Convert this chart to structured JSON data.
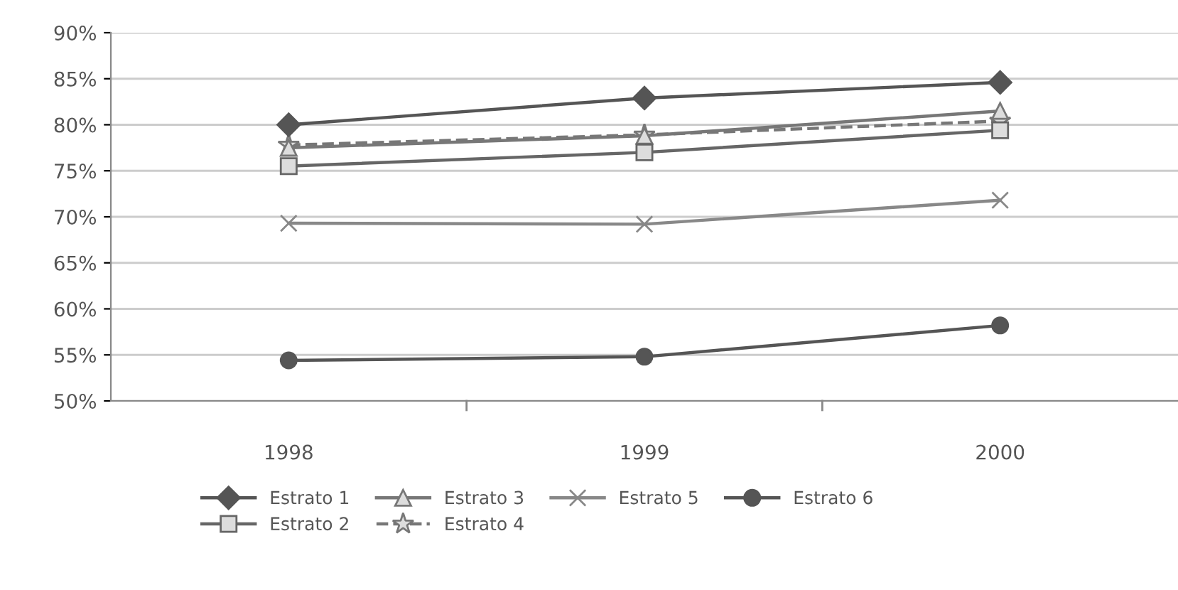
{
  "chart_data": {
    "type": "line",
    "categories": [
      "1998",
      "1999",
      "2000"
    ],
    "ylim": [
      50,
      90
    ],
    "yticks": [
      {
        "value": 50,
        "label": "50%"
      },
      {
        "value": 55,
        "label": "55%"
      },
      {
        "value": 60,
        "label": "60%"
      },
      {
        "value": 65,
        "label": "65%"
      },
      {
        "value": 70,
        "label": "70%"
      },
      {
        "value": 75,
        "label": "75%"
      },
      {
        "value": 80,
        "label": "80%"
      },
      {
        "value": 85,
        "label": "85%"
      },
      {
        "value": 90,
        "label": "90%"
      }
    ],
    "grid": "y",
    "legend": "bottom",
    "series": [
      {
        "name": "Estrato 1",
        "color": "#555555",
        "marker": "diamond",
        "values": [
          80.0,
          82.9,
          84.6
        ]
      },
      {
        "name": "Estrato 2",
        "color": "#666666",
        "marker": "square",
        "values": [
          75.5,
          77.0,
          79.4
        ]
      },
      {
        "name": "Estrato 3",
        "color": "#777777",
        "marker": "triangle",
        "values": [
          77.5,
          78.8,
          81.5
        ]
      },
      {
        "name": "Estrato 4",
        "color": "#777777",
        "marker": "star",
        "line_style": "dashed",
        "values": [
          77.8,
          78.9,
          80.4
        ]
      },
      {
        "name": "Estrato 5",
        "color": "#888888",
        "marker": "cross",
        "values": [
          69.3,
          69.2,
          71.8
        ]
      },
      {
        "name": "Estrato 6",
        "color": "#555555",
        "marker": "circle",
        "values": [
          54.4,
          54.8,
          58.2
        ]
      }
    ]
  }
}
